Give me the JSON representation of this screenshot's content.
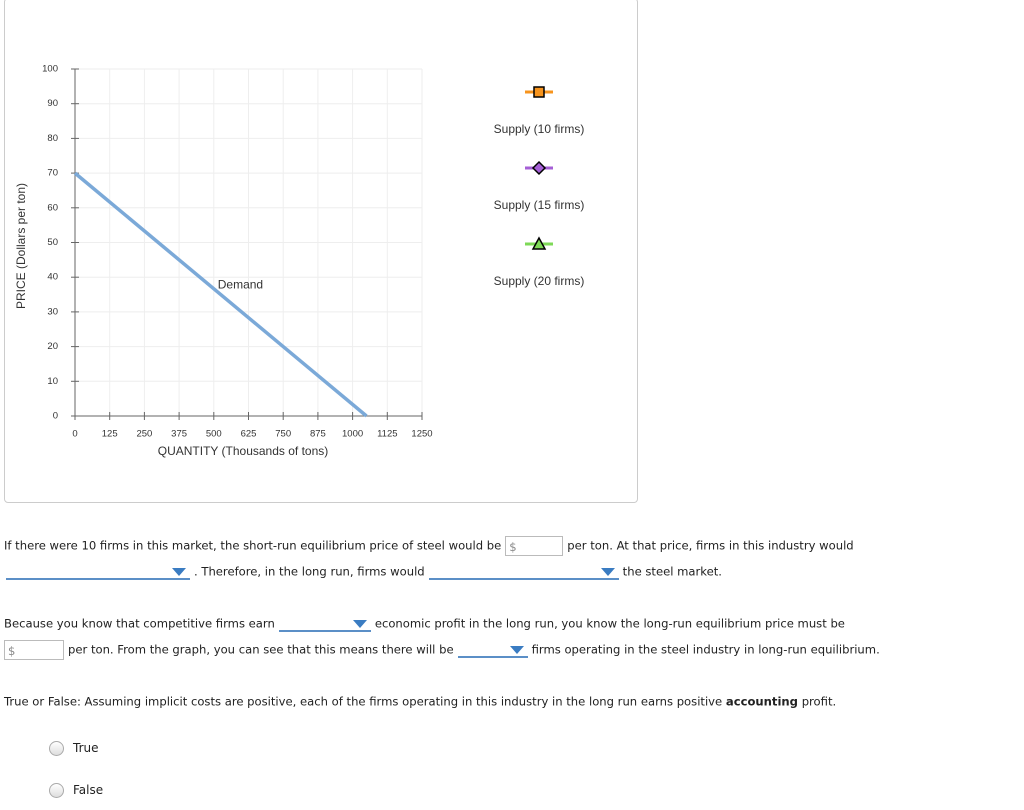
{
  "chart_data": {
    "type": "line",
    "x_label": "QUANTITY (Thousands of tons)",
    "y_label": "PRICE (Dollars per ton)",
    "x": [
      0,
      1050
    ],
    "series": [
      {
        "name": "Demand",
        "color": "#7ba9d8",
        "values": [
          70,
          0
        ]
      }
    ],
    "xlim": [
      0,
      1250
    ],
    "xticks": [
      0,
      125,
      250,
      375,
      500,
      625,
      750,
      875,
      1000,
      1125,
      1250
    ],
    "ylim": [
      0,
      100
    ],
    "yticks": [
      0,
      10,
      20,
      30,
      40,
      50,
      60,
      70,
      80,
      90,
      100
    ],
    "grid": true
  },
  "legend_items": [
    {
      "name": "Supply (10 firms)",
      "color": "#f7941d",
      "marker": "square"
    },
    {
      "name": "Supply (15 firms)",
      "color": "#a55fd6",
      "marker": "diamond"
    },
    {
      "name": "Supply (20 firms)",
      "color": "#7ed957",
      "marker": "triangle"
    }
  ],
  "question1": {
    "text1": "If there were 10 firms in this market, the short-run equilibrium price of steel would be",
    "currency": "$",
    "text2": "per ton. At that price, firms in this industry would",
    "text3": ". Therefore, in the long run, firms would",
    "text4": "the steel market."
  },
  "question2": {
    "text1": "Because you know that competitive firms earn",
    "text2": "economic profit in the long run, you know the long-run equilibrium price must be",
    "currency": "$",
    "text3": "per ton. From the graph, you can see that this means there will be",
    "text4": "firms operating in the steel industry in long-run equilibrium."
  },
  "question3": {
    "text1": "True or False: Assuming implicit costs are positive, each of the firms operating in this industry in the long run earns positive",
    "emphasis": "accounting",
    "text2": "profit.",
    "options": [
      "True",
      "False"
    ]
  }
}
